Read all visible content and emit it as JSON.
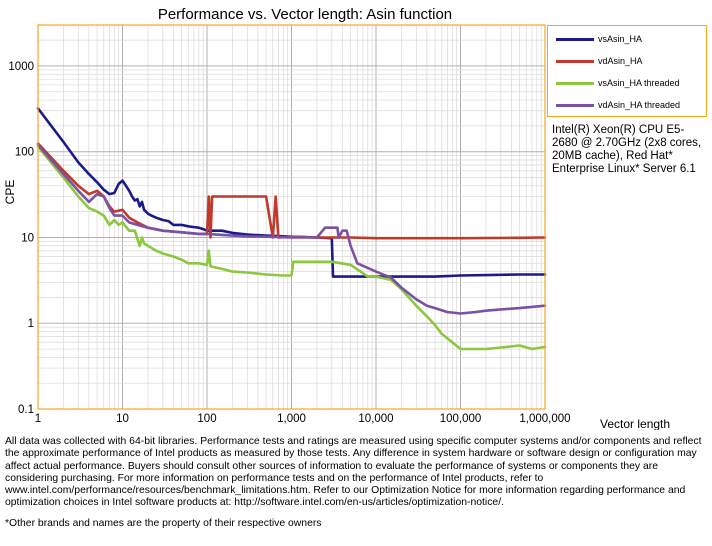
{
  "chart_data": {
    "type": "line",
    "title": "Performance vs. Vector length: Asin function",
    "xlabel": "Vector length",
    "ylabel": "CPE",
    "x_scale": "log",
    "y_scale": "log",
    "xlim": [
      1,
      1000000
    ],
    "ylim": [
      0.1,
      3000
    ],
    "x_ticks": [
      1,
      10,
      100,
      1000,
      10000,
      100000,
      1000000
    ],
    "x_tick_labels": [
      "1",
      "10",
      "100",
      "1,000",
      "10,000",
      "100,000",
      "1,000,000"
    ],
    "y_ticks": [
      0.1,
      1,
      10,
      100,
      1000
    ],
    "y_tick_labels": [
      "0.1",
      "1",
      "10",
      "100",
      "1000"
    ],
    "grid": true,
    "legend_position": "top-right",
    "series": [
      {
        "name": "vsAsin_HA",
        "color": "#1a1a8c",
        "points": [
          [
            1,
            320
          ],
          [
            2,
            130
          ],
          [
            3,
            75
          ],
          [
            4,
            55
          ],
          [
            5,
            44
          ],
          [
            6,
            36
          ],
          [
            7,
            32
          ],
          [
            8,
            33
          ],
          [
            9,
            42
          ],
          [
            10,
            46
          ],
          [
            11,
            40
          ],
          [
            12,
            35
          ],
          [
            13,
            30
          ],
          [
            14,
            27
          ],
          [
            15,
            28
          ],
          [
            16,
            23
          ],
          [
            17,
            26
          ],
          [
            18,
            21
          ],
          [
            20,
            19
          ],
          [
            22,
            18
          ],
          [
            25,
            17
          ],
          [
            30,
            16
          ],
          [
            35,
            15.5
          ],
          [
            40,
            14
          ],
          [
            50,
            14
          ],
          [
            60,
            13.5
          ],
          [
            70,
            13.2
          ],
          [
            80,
            13
          ],
          [
            90,
            12.5
          ],
          [
            100,
            12
          ],
          [
            150,
            12
          ],
          [
            200,
            11.3
          ],
          [
            300,
            10.8
          ],
          [
            500,
            10.5
          ],
          [
            1000,
            10.2
          ],
          [
            2000,
            10
          ],
          [
            3000,
            9.8
          ],
          [
            3100,
            3.5
          ],
          [
            5000,
            3.5
          ],
          [
            10000,
            3.5
          ],
          [
            50000,
            3.5
          ],
          [
            100000,
            3.6
          ],
          [
            500000,
            3.7
          ],
          [
            1000000,
            3.7
          ]
        ]
      },
      {
        "name": "vdAsin_HA",
        "color": "#c0392b",
        "points": [
          [
            1,
            125
          ],
          [
            2,
            60
          ],
          [
            3,
            40
          ],
          [
            4,
            32
          ],
          [
            5,
            35
          ],
          [
            6,
            30
          ],
          [
            7,
            23
          ],
          [
            8,
            20
          ],
          [
            10,
            21
          ],
          [
            12,
            17
          ],
          [
            15,
            15
          ],
          [
            20,
            13
          ],
          [
            30,
            12
          ],
          [
            50,
            11.5
          ],
          [
            80,
            11
          ],
          [
            100,
            11
          ],
          [
            105,
            30
          ],
          [
            110,
            10
          ],
          [
            115,
            30
          ],
          [
            120,
            30
          ],
          [
            500,
            30
          ],
          [
            600,
            10
          ],
          [
            650,
            30
          ],
          [
            700,
            10
          ],
          [
            1000,
            10.2
          ],
          [
            2000,
            10
          ],
          [
            5000,
            10
          ],
          [
            10000,
            9.8
          ],
          [
            50000,
            9.8
          ],
          [
            100000,
            9.8
          ],
          [
            500000,
            9.9
          ],
          [
            1000000,
            10
          ]
        ]
      },
      {
        "name": "vsAsin_HA threaded",
        "color": "#8dc63f",
        "points": [
          [
            1,
            115
          ],
          [
            2,
            50
          ],
          [
            3,
            30
          ],
          [
            4,
            22
          ],
          [
            5,
            20
          ],
          [
            6,
            18
          ],
          [
            7,
            14
          ],
          [
            8,
            16
          ],
          [
            9,
            14
          ],
          [
            10,
            15
          ],
          [
            12,
            12
          ],
          [
            14,
            12
          ],
          [
            16,
            8
          ],
          [
            17,
            10
          ],
          [
            18,
            8.5
          ],
          [
            20,
            8
          ],
          [
            25,
            7
          ],
          [
            30,
            6.5
          ],
          [
            40,
            6
          ],
          [
            50,
            5.5
          ],
          [
            60,
            5
          ],
          [
            80,
            5
          ],
          [
            100,
            4.8
          ],
          [
            105,
            7
          ],
          [
            110,
            4.6
          ],
          [
            150,
            4.3
          ],
          [
            200,
            4
          ],
          [
            300,
            3.9
          ],
          [
            500,
            3.7
          ],
          [
            800,
            3.6
          ],
          [
            1000,
            3.6
          ],
          [
            1050,
            5.2
          ],
          [
            3000,
            5.2
          ],
          [
            5000,
            4.8
          ],
          [
            8000,
            3.5
          ],
          [
            10000,
            3.5
          ],
          [
            15000,
            3.2
          ],
          [
            20000,
            2.5
          ],
          [
            30000,
            1.6
          ],
          [
            40000,
            1.2
          ],
          [
            50000,
            0.95
          ],
          [
            60000,
            0.75
          ],
          [
            80000,
            0.6
          ],
          [
            100000,
            0.5
          ],
          [
            150000,
            0.5
          ],
          [
            200000,
            0.5
          ],
          [
            300000,
            0.52
          ],
          [
            500000,
            0.55
          ],
          [
            700000,
            0.5
          ],
          [
            1000000,
            0.53
          ]
        ]
      },
      {
        "name": "vdAsin_HA threaded",
        "color": "#7b52a3",
        "points": [
          [
            1,
            120
          ],
          [
            2,
            55
          ],
          [
            3,
            35
          ],
          [
            4,
            26
          ],
          [
            5,
            32
          ],
          [
            6,
            30
          ],
          [
            7,
            22
          ],
          [
            8,
            18
          ],
          [
            10,
            18
          ],
          [
            12,
            15
          ],
          [
            15,
            14
          ],
          [
            20,
            13
          ],
          [
            30,
            12
          ],
          [
            50,
            11.5
          ],
          [
            80,
            11
          ],
          [
            100,
            11
          ],
          [
            200,
            10.5
          ],
          [
            300,
            10.3
          ],
          [
            500,
            10.2
          ],
          [
            1000,
            10
          ],
          [
            2000,
            10
          ],
          [
            2500,
            13
          ],
          [
            3500,
            13
          ],
          [
            3600,
            10
          ],
          [
            4000,
            12
          ],
          [
            4500,
            12
          ],
          [
            5000,
            8
          ],
          [
            6000,
            5
          ],
          [
            10000,
            4
          ],
          [
            15000,
            3.4
          ],
          [
            20000,
            2.6
          ],
          [
            30000,
            1.9
          ],
          [
            40000,
            1.6
          ],
          [
            50000,
            1.5
          ],
          [
            70000,
            1.35
          ],
          [
            100000,
            1.3
          ],
          [
            150000,
            1.35
          ],
          [
            200000,
            1.4
          ],
          [
            300000,
            1.45
          ],
          [
            500000,
            1.5
          ],
          [
            700000,
            1.55
          ],
          [
            1000000,
            1.6
          ]
        ]
      }
    ]
  },
  "annotation": {
    "cpu_text": "Intel(R) Xeon(R) CPU E5-2680 @ 2.70GHz (2x8 cores, 20MB cache), Red Hat* Enterprise Linux* Server 6.1"
  },
  "disclaimer": {
    "text": "All data was collected with 64-bit libraries. Performance tests and ratings are measured using specific computer systems and/or components and reflect the approximate performance of Intel products as measured by those tests. Any difference in system hardware or software design or configuration may affect actual performance. Buyers should consult other sources of information to evaluate the performance of systems or components they are considering purchasing. For more information on performance tests and on the performance of Intel products, refer to www.intel.com/performance/resources/benchmark_limitations.htm. Refer to our Optimization Notice for more information regarding performance and optimization choices in Intel software products at: http://software.intel.com/en-us/articles/optimization-notice/.",
    "footnote": "*Other brands and names are the property of their respective owners"
  },
  "colors": {
    "plot_border": "#f5a623",
    "grid": "#c8c8c8"
  }
}
